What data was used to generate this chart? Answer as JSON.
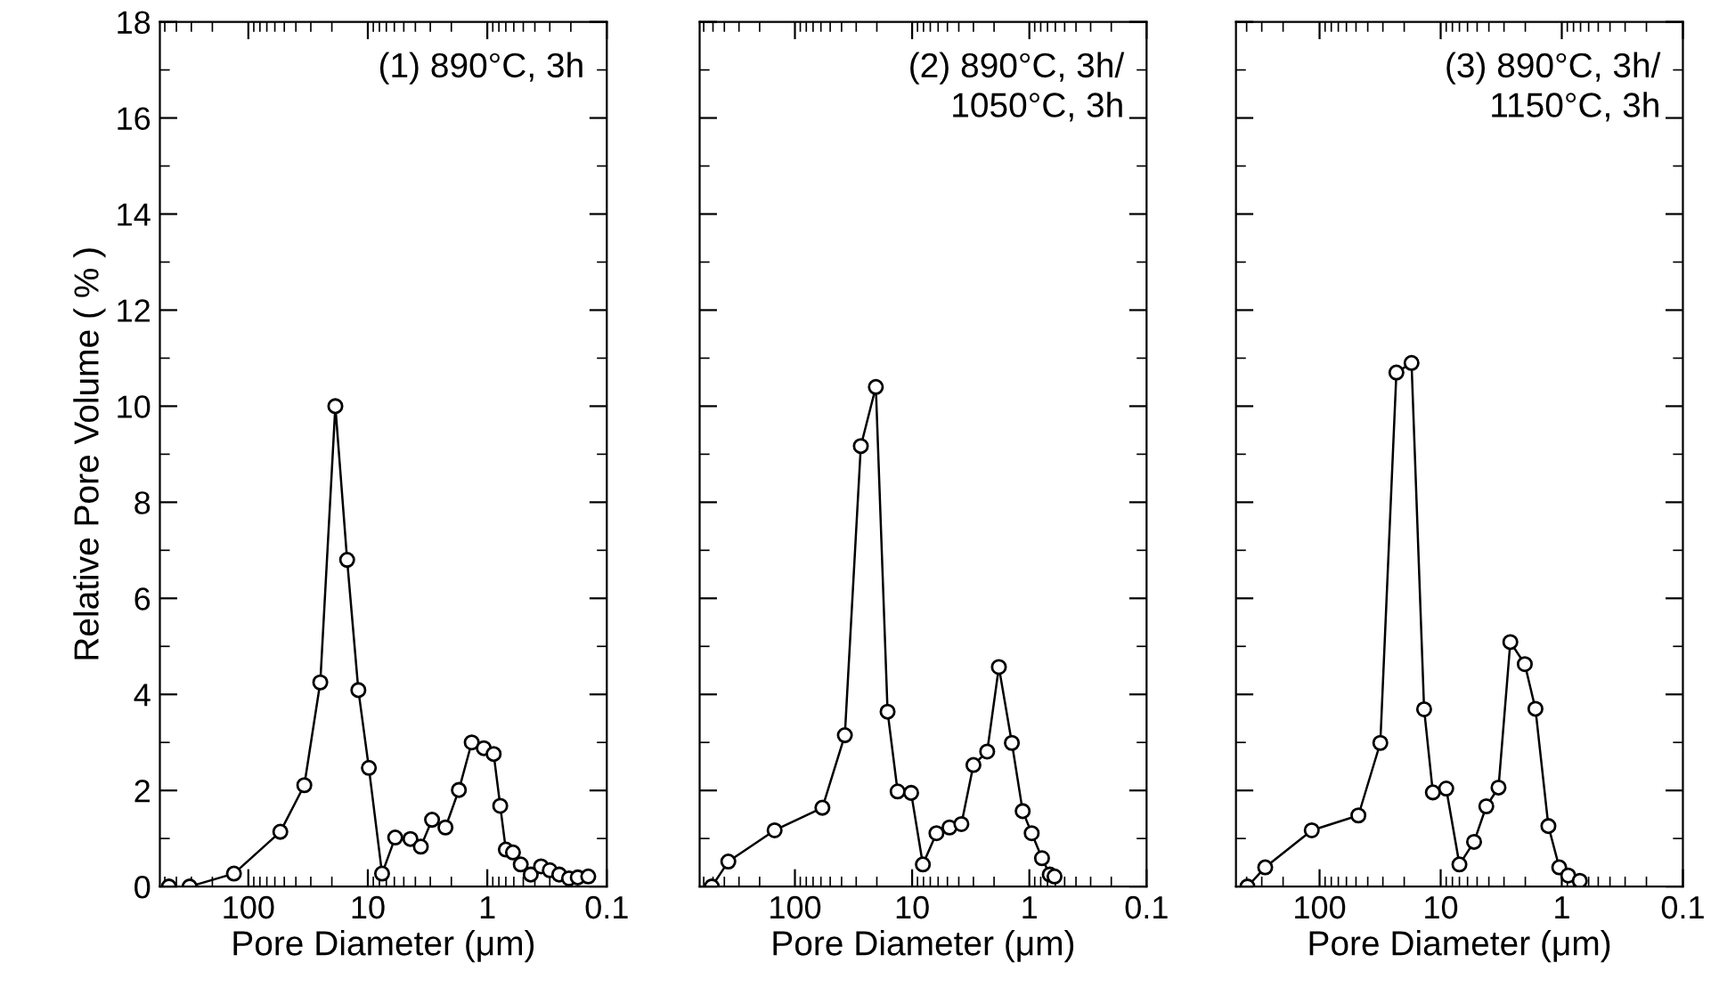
{
  "chart_data": [
    {
      "type": "line",
      "xlabel": "Pore Diameter (μm)",
      "ylabel": "Relative Pore Volume ( % )",
      "annotations": [
        "(1) 890°C, 3h"
      ],
      "log": "x",
      "marker": "circle",
      "line_style": "solid",
      "grid": false,
      "legend": false,
      "xlim": [
        550,
        0.1
      ],
      "xticks": [
        100,
        10,
        1,
        0.1
      ],
      "ylim": [
        0,
        18
      ],
      "yticks": [
        0,
        2,
        4,
        6,
        8,
        10,
        12,
        14,
        16,
        18
      ],
      "series": [
        {
          "color": "#000000",
          "x": [
            462,
            310,
            132,
            54,
            34,
            25,
            18.7,
            14.9,
            12.0,
            9.8,
            7.6,
            5.9,
            4.4,
            3.6,
            2.9,
            2.24,
            1.73,
            1.35,
            1.07,
            0.885,
            0.78,
            0.7,
            0.61,
            0.525,
            0.433,
            0.355,
            0.3,
            0.25,
            0.207,
            0.175,
            0.143
          ],
          "values": [
            0,
            0,
            0.27,
            1.14,
            2.11,
            4.25,
            10,
            6.8,
            4.09,
            2.47,
            0.27,
            1.02,
            0.99,
            0.83,
            1.39,
            1.23,
            2.01,
            3.0,
            2.88,
            2.76,
            1.68,
            0.77,
            0.71,
            0.46,
            0.25,
            0.42,
            0.34,
            0.25,
            0.17,
            0.19,
            0.21
          ]
        }
      ]
    },
    {
      "type": "line",
      "xlabel": "Pore Diameter (μm)",
      "annotations": [
        "(2) 890°C, 3h/\n1050°C, 3h"
      ],
      "log": "x",
      "marker": "circle",
      "line_style": "solid",
      "grid": false,
      "legend": false,
      "tick_labels": "x",
      "xlim": [
        650,
        0.1
      ],
      "xticks": [
        100,
        10,
        1,
        0.1
      ],
      "ylim": [
        0,
        18
      ],
      "yticks": [
        0,
        2,
        4,
        6,
        8,
        10,
        12,
        14,
        16,
        18
      ],
      "series": [
        {
          "color": "#000000",
          "x": [
            512,
            370,
            149,
            58.3,
            37.5,
            27.4,
            20.4,
            16.2,
            13.3,
            10.2,
            8.1,
            6.2,
            4.8,
            3.8,
            3.0,
            2.29,
            1.82,
            1.41,
            1.14,
            0.955,
            0.78,
            0.67,
            0.61
          ],
          "values": [
            0,
            0.52,
            1.17,
            1.64,
            3.15,
            9.17,
            10.4,
            3.64,
            1.98,
            1.95,
            0.46,
            1.11,
            1.23,
            1.3,
            2.53,
            2.81,
            4.57,
            2.99,
            1.57,
            1.11,
            0.59,
            0.25,
            0.21
          ]
        }
      ]
    },
    {
      "type": "line",
      "xlabel": "Pore Diameter (μm)",
      "annotations": [
        "(3) 890°C, 3h/\n1150°C, 3h"
      ],
      "log": "x",
      "marker": "circle",
      "line_style": "solid",
      "grid": false,
      "legend": false,
      "tick_labels": "x",
      "xlim": [
        490,
        0.1
      ],
      "xticks": [
        100,
        10,
        1,
        0.1
      ],
      "ylim": [
        0,
        18
      ],
      "yticks": [
        0,
        2,
        4,
        6,
        8,
        10,
        12,
        14,
        16,
        18
      ],
      "series": [
        {
          "color": "#000000",
          "x": [
            394,
            281,
            116,
            47.8,
            31.5,
            23.2,
            17.4,
            13.7,
            11.6,
            9.0,
            7.0,
            5.3,
            4.2,
            3.33,
            2.66,
            2.02,
            1.65,
            1.29,
            1.05,
            0.885,
            0.71
          ],
          "values": [
            0,
            0.4,
            1.17,
            1.48,
            2.99,
            10.7,
            10.9,
            3.69,
            1.96,
            2.04,
            0.46,
            0.93,
            1.67,
            2.06,
            5.09,
            4.63,
            3.7,
            1.26,
            0.4,
            0.23,
            0.12
          ]
        }
      ]
    }
  ]
}
